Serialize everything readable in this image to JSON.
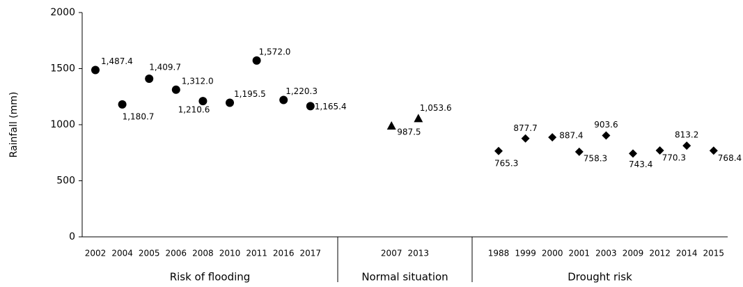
{
  "chart_data": {
    "type": "scatter",
    "y_label": "Rainfall (mm)",
    "ylim": [
      0,
      2000
    ],
    "yticks": [
      0,
      500,
      1000,
      1500,
      2000
    ],
    "color": "#000000",
    "groups": [
      {
        "name": "Risk of flooding",
        "marker": "circle",
        "categories": [
          "2002",
          "2004",
          "2005",
          "2006",
          "2008",
          "2010",
          "2011",
          "2016",
          "2017"
        ],
        "values": [
          1487.4,
          1180.7,
          1409.7,
          1312.0,
          1210.6,
          1195.5,
          1572.0,
          1220.3,
          1165.4
        ],
        "value_labels": [
          "1,487.4",
          "1,180.7",
          "1,409.7",
          "1,312.0",
          "1,210.6",
          "1,195.5",
          "1,572.0",
          "1,220.3",
          "1,165.4"
        ]
      },
      {
        "name": "Normal situation",
        "marker": "triangle",
        "categories": [
          "2007",
          "2013"
        ],
        "values": [
          987.5,
          1053.6
        ],
        "value_labels": [
          "987.5",
          "1,053.6"
        ]
      },
      {
        "name": "Drought risk",
        "marker": "diamond",
        "categories": [
          "1988",
          "1999",
          "2000",
          "2001",
          "2003",
          "2009",
          "2012",
          "2014",
          "2015"
        ],
        "values": [
          765.3,
          877.7,
          887.4,
          758.3,
          903.6,
          743.4,
          770.3,
          813.2,
          768.4
        ],
        "value_labels": [
          "765.3",
          "877.7",
          "887.4",
          "758.3",
          "903.6",
          "743.4",
          "770.3",
          "813.2",
          "768.4"
        ]
      }
    ]
  }
}
